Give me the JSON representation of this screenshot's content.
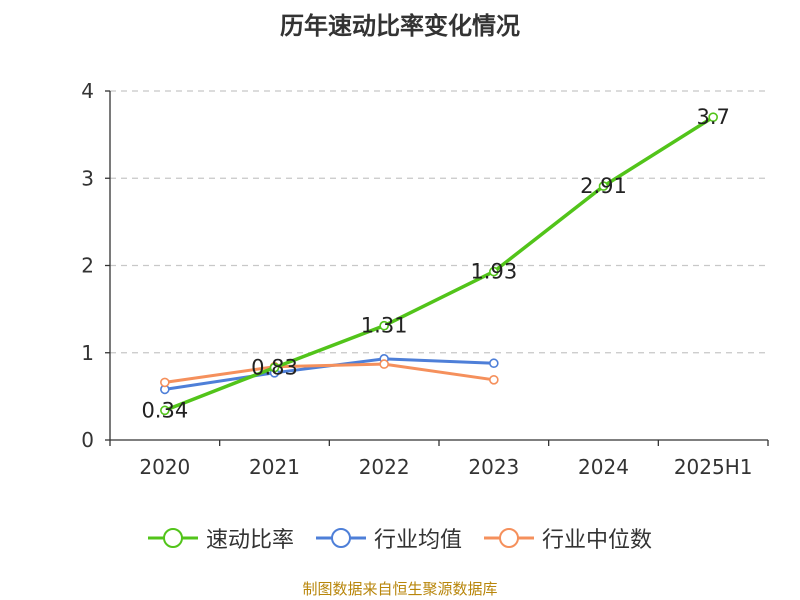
{
  "chart_data": {
    "type": "line",
    "title": "历年速动比率变化情况",
    "categories": [
      "2020",
      "2021",
      "2022",
      "2023",
      "2024",
      "2025H1"
    ],
    "ylim": [
      0,
      4
    ],
    "yticks": [
      "0",
      "1",
      "2",
      "3",
      "4"
    ],
    "grid": true,
    "legend_position": "bottom",
    "series": [
      {
        "name": "速动比率",
        "color": "#52c41a",
        "values": [
          0.34,
          0.83,
          1.31,
          1.93,
          2.91,
          3.7
        ],
        "labels": [
          "0.34",
          "0.83",
          "1.31",
          "1.93",
          "2.91",
          "3.7"
        ]
      },
      {
        "name": "行业均值",
        "color": "#4e7fd8",
        "values": [
          0.58,
          0.77,
          0.93,
          0.88,
          null,
          null
        ]
      },
      {
        "name": "行业中位数",
        "color": "#f5905c",
        "values": [
          0.66,
          0.84,
          0.87,
          0.69,
          null,
          null
        ]
      }
    ]
  },
  "source_text": "制图数据来自恒生聚源数据库"
}
